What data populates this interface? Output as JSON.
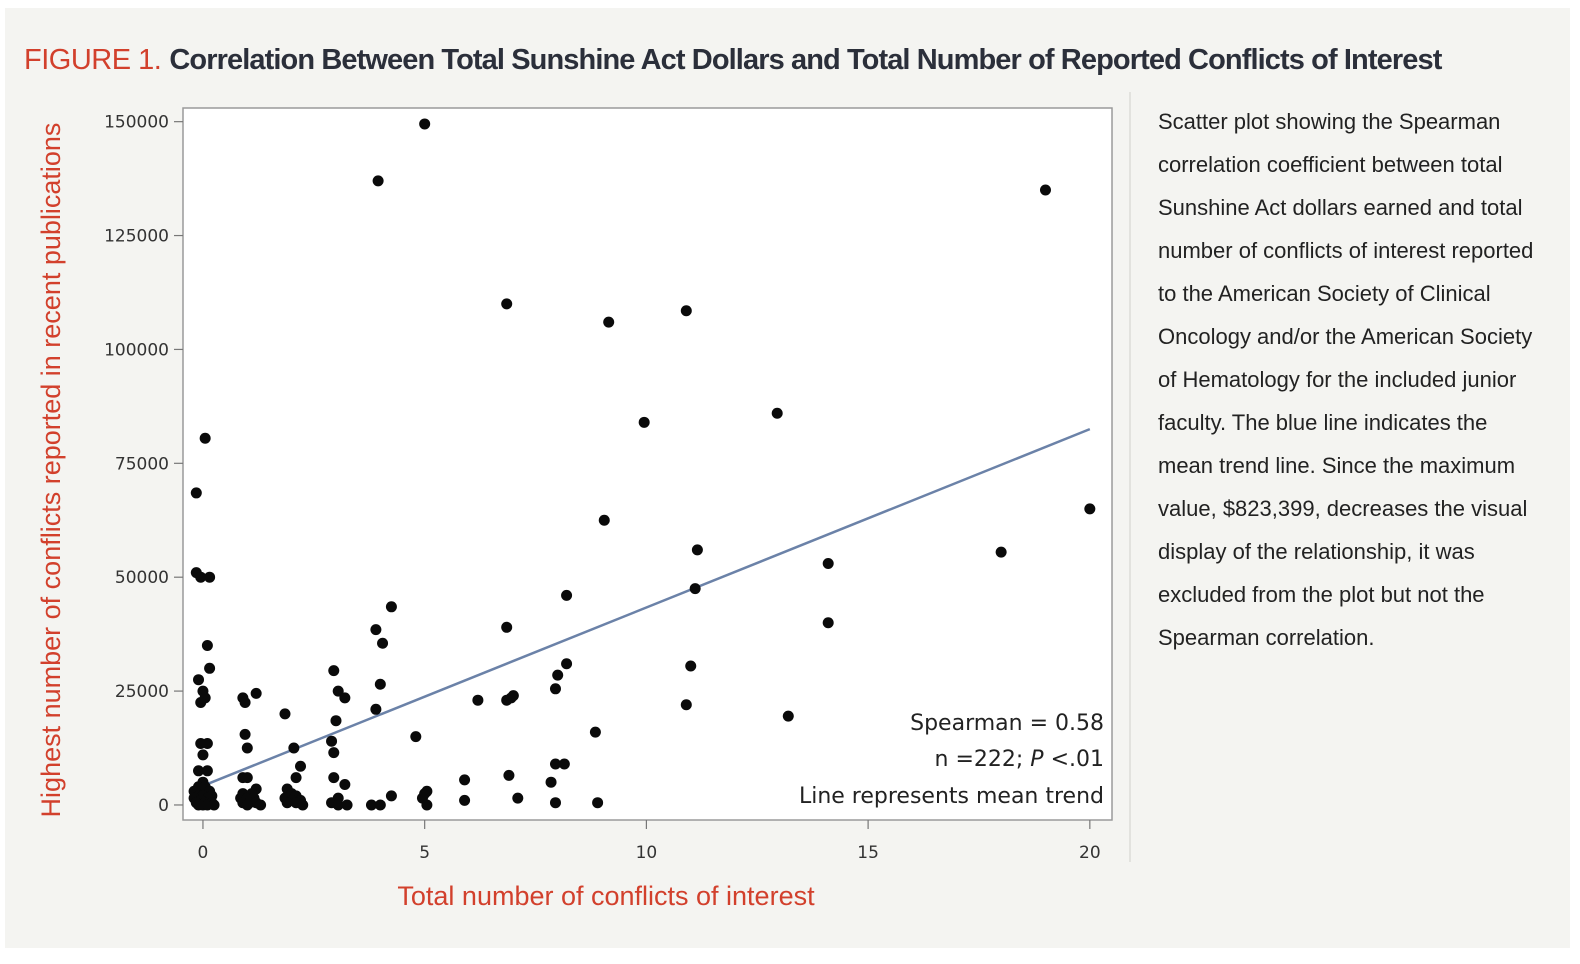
{
  "figure": {
    "label": "FIGURE 1.",
    "title": "Correlation Between Total Sunshine Act Dollars and Total Number of Reported Conflicts of Interest",
    "caption": "Scatter plot showing the Spearman correlation coefficient between total Sunshine Act dollars earned and total number of conflicts of interest reported to the American Society of Clinical Oncology and/or the American Society of Hematology for the included junior faculty. The blue line indicates the mean trend line. Since the maximum value, $823,399, decreases the visual display of the relationship, it was excluded from the plot but not the Spearman correlation."
  },
  "colors": {
    "accent_red": "#d2402c",
    "trend_blue": "#6b82a8",
    "panel_bg": "#f4f4f1",
    "title_dark": "#2b2f3a"
  },
  "chart_data": {
    "type": "scatter",
    "xlabel": "Total number of conflicts of interest",
    "ylabel": "Highest number of conflicts reported in recent publications",
    "xlim": [
      -0.45,
      20.5
    ],
    "ylim": [
      -3300,
      153000
    ],
    "x_ticks": [
      0,
      5,
      10,
      15,
      20
    ],
    "y_ticks": [
      0,
      25000,
      50000,
      75000,
      100000,
      125000,
      150000
    ],
    "y_tick_labels": [
      "0",
      "25000",
      "50000",
      "75000",
      "100000",
      "125000",
      "150000"
    ],
    "x_tick_labels": [
      "0",
      "5",
      "10",
      "15",
      "20"
    ],
    "annotation": {
      "line1": "Spearman = 0.58",
      "line2_prefix": "n =222; ",
      "line2_p": "P",
      "line2_suffix": " <.01",
      "line3": "Line represents mean trend"
    },
    "trend_line": {
      "x": [
        0,
        20
      ],
      "y": [
        4200,
        82500
      ]
    },
    "points": [
      [
        -0.15,
        68500
      ],
      [
        -0.15,
        51000
      ],
      [
        -0.05,
        50000
      ],
      [
        0.15,
        50000
      ],
      [
        0.05,
        80500
      ],
      [
        0.1,
        35000
      ],
      [
        0.15,
        30000
      ],
      [
        -0.1,
        27500
      ],
      [
        0.0,
        25000
      ],
      [
        0.05,
        23500
      ],
      [
        -0.05,
        22500
      ],
      [
        -0.05,
        13500
      ],
      [
        0.1,
        13500
      ],
      [
        0.0,
        11000
      ],
      [
        -0.1,
        7500
      ],
      [
        0.1,
        7500
      ],
      [
        0.0,
        5000
      ],
      [
        -0.1,
        4000
      ],
      [
        0.05,
        4000
      ],
      [
        -0.2,
        3000
      ],
      [
        0.15,
        3000
      ],
      [
        -0.1,
        2000
      ],
      [
        0.0,
        2000
      ],
      [
        0.2,
        2000
      ],
      [
        -0.2,
        1500
      ],
      [
        0.1,
        1500
      ],
      [
        -0.05,
        1000
      ],
      [
        0.15,
        1000
      ],
      [
        -0.15,
        500
      ],
      [
        0.05,
        500
      ],
      [
        0.2,
        500
      ],
      [
        -0.1,
        0
      ],
      [
        0.0,
        0
      ],
      [
        0.1,
        0
      ],
      [
        0.25,
        0
      ],
      [
        0.9,
        23500
      ],
      [
        0.95,
        22500
      ],
      [
        1.2,
        24500
      ],
      [
        0.95,
        15500
      ],
      [
        1.0,
        12500
      ],
      [
        0.9,
        6000
      ],
      [
        1.0,
        6000
      ],
      [
        1.2,
        3500
      ],
      [
        0.9,
        2500
      ],
      [
        1.1,
        2500
      ],
      [
        0.85,
        1500
      ],
      [
        1.0,
        1500
      ],
      [
        1.15,
        1500
      ],
      [
        0.9,
        500
      ],
      [
        1.05,
        500
      ],
      [
        1.2,
        500
      ],
      [
        1.0,
        0
      ],
      [
        1.3,
        0
      ],
      [
        1.85,
        20000
      ],
      [
        2.05,
        12500
      ],
      [
        2.1,
        6000
      ],
      [
        2.2,
        8500
      ],
      [
        1.9,
        3500
      ],
      [
        2.0,
        2500
      ],
      [
        2.1,
        2000
      ],
      [
        1.85,
        1500
      ],
      [
        2.0,
        1000
      ],
      [
        2.2,
        1000
      ],
      [
        1.9,
        500
      ],
      [
        2.1,
        500
      ],
      [
        2.25,
        0
      ],
      [
        2.95,
        29500
      ],
      [
        3.05,
        25000
      ],
      [
        3.2,
        23500
      ],
      [
        3.0,
        18500
      ],
      [
        2.9,
        14000
      ],
      [
        2.95,
        11500
      ],
      [
        2.95,
        6000
      ],
      [
        3.2,
        4500
      ],
      [
        3.05,
        1500
      ],
      [
        2.9,
        500
      ],
      [
        3.05,
        0
      ],
      [
        3.25,
        0
      ],
      [
        3.9,
        38500
      ],
      [
        4.25,
        43500
      ],
      [
        4.05,
        35500
      ],
      [
        4.0,
        26500
      ],
      [
        3.9,
        21000
      ],
      [
        4.25,
        2000
      ],
      [
        3.8,
        0
      ],
      [
        4.0,
        0
      ],
      [
        4.8,
        15000
      ],
      [
        5.0,
        2500
      ],
      [
        5.05,
        3000
      ],
      [
        4.95,
        1500
      ],
      [
        5.05,
        0
      ],
      [
        5.9,
        5500
      ],
      [
        5.9,
        1000
      ],
      [
        6.2,
        23000
      ],
      [
        6.85,
        39000
      ],
      [
        6.85,
        23000
      ],
      [
        6.95,
        23500
      ],
      [
        7.0,
        24000
      ],
      [
        6.9,
        6500
      ],
      [
        7.1,
        1500
      ],
      [
        7.95,
        25500
      ],
      [
        8.0,
        28500
      ],
      [
        8.2,
        31000
      ],
      [
        8.2,
        46000
      ],
      [
        7.95,
        9000
      ],
      [
        8.15,
        9000
      ],
      [
        7.85,
        5000
      ],
      [
        7.95,
        500
      ],
      [
        8.85,
        16000
      ],
      [
        8.9,
        500
      ],
      [
        9.05,
        62500
      ],
      [
        10.9,
        22000
      ],
      [
        11.0,
        30500
      ],
      [
        11.1,
        47500
      ],
      [
        11.15,
        56000
      ],
      [
        12.95,
        86000
      ],
      [
        13.2,
        19500
      ],
      [
        14.1,
        53000
      ],
      [
        14.1,
        40000
      ],
      [
        18.0,
        55500
      ],
      [
        19.0,
        135000
      ],
      [
        20.0,
        65000
      ],
      [
        5.0,
        149500
      ],
      [
        3.95,
        137000
      ],
      [
        6.85,
        110000
      ],
      [
        9.15,
        106000
      ],
      [
        10.9,
        108500
      ],
      [
        9.95,
        84000
      ]
    ]
  }
}
